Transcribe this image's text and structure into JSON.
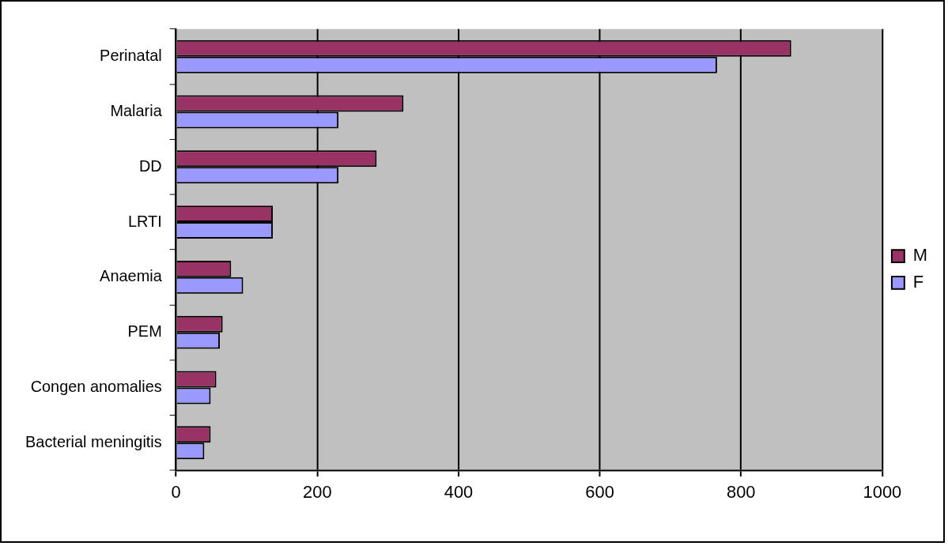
{
  "chart_data": {
    "type": "bar",
    "orientation": "horizontal",
    "categories": [
      "Perinatal",
      "Malaria",
      "DD",
      "LRTI",
      "Anaemia",
      "PEM",
      "Congen anomalies",
      "Bacterial meningitis"
    ],
    "series": [
      {
        "name": "M",
        "color": "#993366",
        "values": [
          871,
          322,
          284,
          137,
          78,
          66,
          57,
          49
        ]
      },
      {
        "name": "F",
        "color": "#9999ff",
        "values": [
          766,
          230,
          230,
          137,
          95,
          62,
          49,
          40
        ]
      }
    ],
    "xlim": [
      0,
      1000
    ],
    "xticks": [
      0,
      200,
      400,
      600,
      800,
      1000
    ],
    "grid": "x",
    "legend": "right"
  }
}
